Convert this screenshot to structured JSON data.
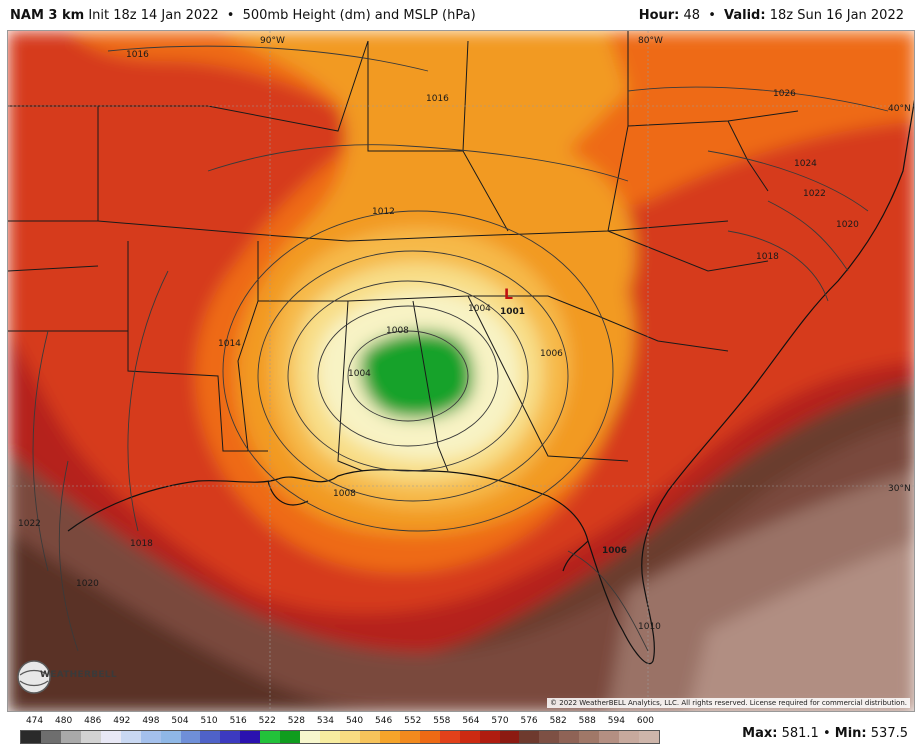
{
  "header": {
    "model": "NAM 3 km",
    "init": "Init 18z 14 Jan 2022",
    "product": "500mb Height (dm) and MSLP (hPa)",
    "hour_label": "Hour:",
    "hour_value": "48",
    "valid_label": "Valid:",
    "valid_value": "18z Sun 16 Jan 2022",
    "bullet": "•"
  },
  "map": {
    "lon_labels": [
      "90°W",
      "80°W"
    ],
    "lat_labels": [
      "40°N",
      "30°N"
    ],
    "isobar_labels": [
      "1016",
      "1016",
      "1012",
      "1014",
      "1008",
      "1004",
      "1004",
      "1006",
      "1008",
      "1001",
      "1026",
      "1024",
      "1022",
      "1020",
      "1018",
      "1022",
      "1018",
      "1020",
      "1006",
      "1010"
    ],
    "low_marker": "L",
    "copyright": "© 2022 WeatherBELL Analytics, LLC. All rights reserved. License required for commercial distribution.",
    "logo_text": "WEATHERBELL"
  },
  "scale": {
    "labels": [
      "474",
      "480",
      "486",
      "492",
      "498",
      "504",
      "510",
      "516",
      "522",
      "528",
      "534",
      "540",
      "546",
      "552",
      "558",
      "564",
      "570",
      "576",
      "582",
      "588",
      "594",
      "600"
    ],
    "colors": [
      "#2a2a2a",
      "#6e6e6e",
      "#a9a9a9",
      "#d2d2d2",
      "#e8e8f5",
      "#c9d8f2",
      "#a4c0ec",
      "#8fb7e6",
      "#6f8fd8",
      "#4f62c8",
      "#3c3ac0",
      "#2a12b0",
      "#22c23a",
      "#0f9c1e",
      "#f7f7cd",
      "#f7eda0",
      "#f9dc82",
      "#f6c35b",
      "#f5a42a",
      "#f28a1e",
      "#ee6a14",
      "#e2411a",
      "#cc2a12",
      "#b01c10",
      "#8c1a12",
      "#6e3a2e",
      "#7d5044",
      "#8f6356",
      "#a07868",
      "#b48f82",
      "#c7a99d",
      "#ceb5aa"
    ],
    "max_label": "Max:",
    "max_value": "581.1",
    "min_label": "Min:",
    "min_value": "537.5"
  }
}
